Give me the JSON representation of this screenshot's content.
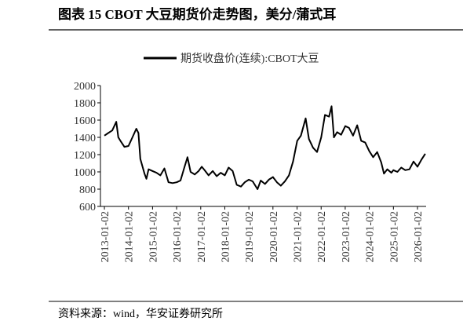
{
  "chart_data": {
    "type": "line",
    "title": "图表 15 CBOT 大豆期货价走势图，美分/蒲式耳",
    "source": "资料来源：wind，华安证券研究所",
    "x": [
      "2013-01-02",
      "2013-03-01",
      "2013-05-01",
      "2013-07-01",
      "2013-08-01",
      "2013-09-02",
      "2013-11-01",
      "2014-01-02",
      "2014-03-03",
      "2014-05-01",
      "2014-06-02",
      "2014-07-01",
      "2014-09-02",
      "2014-10-01",
      "2014-11-03",
      "2015-01-02",
      "2015-03-02",
      "2015-05-01",
      "2015-07-01",
      "2015-09-01",
      "2015-11-02",
      "2016-01-04",
      "2016-03-01",
      "2016-05-02",
      "2016-06-15",
      "2016-08-01",
      "2016-10-03",
      "2016-12-01",
      "2017-01-17",
      "2017-03-01",
      "2017-05-01",
      "2017-07-03",
      "2017-09-01",
      "2017-11-01",
      "2018-01-02",
      "2018-03-01",
      "2018-05-01",
      "2018-07-02",
      "2018-09-04",
      "2018-11-01",
      "2019-01-02",
      "2019-03-01",
      "2019-05-13",
      "2019-07-01",
      "2019-09-03",
      "2019-11-01",
      "2020-01-02",
      "2020-03-02",
      "2020-05-01",
      "2020-07-01",
      "2020-09-01",
      "2020-11-02",
      "2021-01-04",
      "2021-03-01",
      "2021-05-12",
      "2021-07-01",
      "2021-09-01",
      "2021-11-01",
      "2022-01-03",
      "2022-03-01",
      "2022-05-02",
      "2022-06-09",
      "2022-07-15",
      "2022-09-01",
      "2022-11-01",
      "2023-01-03",
      "2023-03-01",
      "2023-05-01",
      "2023-07-03",
      "2023-09-01",
      "2023-11-01",
      "2024-01-02",
      "2024-03-01",
      "2024-05-01",
      "2024-07-01",
      "2024-08-12",
      "2024-10-01",
      "2024-12-02",
      "2025-01-02",
      "2025-03-03",
      "2025-05-01",
      "2025-07-01",
      "2025-09-02",
      "2025-11-03",
      "2026-01-02",
      "2026-03-02",
      "2026-04-30"
    ],
    "series": [
      {
        "name": "期货收盘价(连续):CBOT大豆",
        "color": "#000000",
        "values": [
          1420,
          1450,
          1480,
          1580,
          1400,
          1360,
          1290,
          1300,
          1400,
          1500,
          1450,
          1150,
          980,
          920,
          1030,
          1010,
          990,
          960,
          1040,
          880,
          870,
          880,
          900,
          1060,
          1170,
          1000,
          970,
          1010,
          1060,
          1020,
          960,
          1010,
          950,
          990,
          960,
          1050,
          1010,
          850,
          830,
          880,
          910,
          890,
          800,
          900,
          860,
          910,
          940,
          880,
          840,
          890,
          960,
          1120,
          1360,
          1420,
          1620,
          1380,
          1280,
          1230,
          1400,
          1660,
          1640,
          1760,
          1400,
          1460,
          1430,
          1530,
          1510,
          1420,
          1540,
          1360,
          1340,
          1240,
          1170,
          1230,
          1110,
          980,
          1030,
          990,
          1020,
          1000,
          1050,
          1020,
          1030,
          1120,
          1060,
          1140,
          1210
        ]
      }
    ],
    "xlim": [
      "2012-11-03",
      "2026-05-13"
    ],
    "xticks": [
      "2013-01-02",
      "2014-01-02",
      "2015-01-02",
      "2016-01-02",
      "2017-01-02",
      "2018-01-02",
      "2019-01-02",
      "2020-01-02",
      "2021-01-02",
      "2022-01-02",
      "2023-01-02",
      "2024-01-02",
      "2025-01-02",
      "2026-01-02"
    ],
    "ylim": [
      600,
      2000
    ],
    "yticks": [
      600,
      800,
      1000,
      1200,
      1400,
      1600,
      1800,
      2000
    ]
  }
}
